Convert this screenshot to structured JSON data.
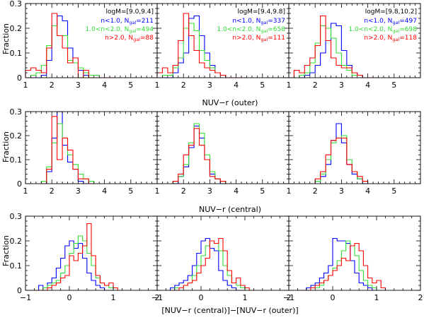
{
  "colors": {
    "blue": "#0000ff",
    "green": "#33dd33",
    "red": "#ff0000",
    "axis": "#000000"
  },
  "figure": {
    "y_axis_label": "Fraction",
    "row_xlabels": [
      "NUV−r (outer)",
      "NUV−r (central)",
      "[NUV−r (central)]−[NUV−r (outer)]"
    ]
  },
  "chart_data": [
    {
      "type": "step-histogram",
      "row": 0,
      "col": 0,
      "xlim": [
        1,
        6
      ],
      "ylim": [
        0,
        0.3
      ],
      "xticks": [
        1,
        2,
        3,
        4,
        5
      ],
      "yticks": [
        0,
        0.1,
        0.2,
        0.3
      ],
      "bin_edges": [
        1.0,
        1.2,
        1.4,
        1.6,
        1.8,
        2.0,
        2.2,
        2.4,
        2.6,
        2.8,
        3.0,
        3.2,
        3.4,
        3.6,
        3.8,
        4.0,
        4.2,
        4.4
      ],
      "legend": {
        "title": "logM=[9.0,9.4]",
        "entries": [
          {
            "name": "n<1.0, N",
            "sub": "gal",
            "eq": "=211",
            "color": "blue"
          },
          {
            "name": "1.0<n<2.0, N",
            "sub": "gal",
            "eq": "=494",
            "color": "green"
          },
          {
            "name": "n>2.0, N",
            "sub": "gal",
            "eq": "=88",
            "color": "red"
          }
        ]
      },
      "series": [
        {
          "name": "n<1.0",
          "color": "blue",
          "values": [
            0.0,
            0.0,
            0.0,
            0.01,
            0.07,
            0.21,
            0.25,
            0.23,
            0.12,
            0.06,
            0.03,
            0.01,
            0.0,
            0.0,
            0.0,
            0.0,
            0.0
          ]
        },
        {
          "name": "1.0<n<2.0",
          "color": "green",
          "values": [
            0.0,
            0.01,
            0.02,
            0.05,
            0.13,
            0.21,
            0.17,
            0.17,
            0.07,
            0.06,
            0.04,
            0.02,
            0.01,
            0.01,
            0.0,
            0.0,
            0.0
          ]
        },
        {
          "name": "n>2.0",
          "color": "red",
          "values": [
            0.03,
            0.04,
            0.03,
            0.02,
            0.12,
            0.26,
            0.17,
            0.12,
            0.06,
            0.08,
            0.0,
            0.03,
            0.0,
            0.0,
            0.0,
            0.0,
            0.0
          ]
        }
      ]
    },
    {
      "type": "step-histogram",
      "row": 0,
      "col": 1,
      "xlim": [
        1,
        6
      ],
      "ylim": [
        0,
        0.3
      ],
      "xticks": [
        1,
        2,
        3,
        4,
        5
      ],
      "yticks": [
        0,
        0.1,
        0.2,
        0.3
      ],
      "bin_edges": [
        1.0,
        1.2,
        1.4,
        1.6,
        1.8,
        2.0,
        2.2,
        2.4,
        2.6,
        2.8,
        3.0,
        3.2,
        3.4,
        3.6,
        3.8,
        4.0,
        4.2,
        4.4
      ],
      "legend": {
        "title": "logM=[9.4,9.8]",
        "entries": [
          {
            "name": "n<1.0, N",
            "sub": "gal",
            "eq": "=337",
            "color": "blue"
          },
          {
            "name": "1.0<n<2.0, N",
            "sub": "gal",
            "eq": "=658",
            "color": "green"
          },
          {
            "name": "n>2.0, N",
            "sub": "gal",
            "eq": "=111",
            "color": "red"
          }
        ]
      },
      "series": [
        {
          "name": "n<1.0",
          "color": "blue",
          "values": [
            0.0,
            0.0,
            0.0,
            0.02,
            0.06,
            0.1,
            0.24,
            0.25,
            0.17,
            0.1,
            0.05,
            0.02,
            0.01,
            0.0,
            0.0,
            0.0,
            0.0
          ]
        },
        {
          "name": "1.0<n<2.0",
          "color": "green",
          "values": [
            0.0,
            0.01,
            0.01,
            0.04,
            0.08,
            0.2,
            0.22,
            0.19,
            0.11,
            0.07,
            0.04,
            0.02,
            0.01,
            0.0,
            0.0,
            0.0,
            0.0
          ]
        },
        {
          "name": "n>2.0",
          "color": "red",
          "values": [
            0.02,
            0.04,
            0.02,
            0.05,
            0.15,
            0.26,
            0.17,
            0.11,
            0.06,
            0.04,
            0.03,
            0.02,
            0.01,
            0.0,
            0.0,
            0.0,
            0.0
          ]
        }
      ]
    },
    {
      "type": "step-histogram",
      "row": 0,
      "col": 2,
      "xlim": [
        1,
        6
      ],
      "ylim": [
        0,
        0.3
      ],
      "xticks": [
        1,
        2,
        3,
        4,
        5
      ],
      "yticks": [
        0,
        0.1,
        0.2,
        0.3
      ],
      "bin_edges": [
        1.0,
        1.2,
        1.4,
        1.6,
        1.8,
        2.0,
        2.2,
        2.4,
        2.6,
        2.8,
        3.0,
        3.2,
        3.4,
        3.6,
        3.8,
        4.0,
        4.2,
        4.4
      ],
      "legend": {
        "title": "logM=[9.8,10.2]",
        "entries": [
          {
            "name": "n<1.0, N",
            "sub": "gal",
            "eq": "=497",
            "color": "blue"
          },
          {
            "name": "1.0<n<2.0, N",
            "sub": "gal",
            "eq": "=698",
            "color": "green"
          },
          {
            "name": "n>2.0, N",
            "sub": "gal",
            "eq": "=118",
            "color": "red"
          }
        ]
      },
      "series": [
        {
          "name": "n<1.0",
          "color": "blue",
          "values": [
            0.0,
            0.0,
            0.0,
            0.01,
            0.02,
            0.05,
            0.1,
            0.15,
            0.22,
            0.21,
            0.11,
            0.05,
            0.02,
            0.01,
            0.0,
            0.0,
            0.0
          ]
        },
        {
          "name": "1.0<n<2.0",
          "color": "green",
          "values": [
            0.0,
            0.0,
            0.01,
            0.02,
            0.06,
            0.14,
            0.21,
            0.2,
            0.16,
            0.1,
            0.05,
            0.03,
            0.01,
            0.01,
            0.0,
            0.0,
            0.0
          ]
        },
        {
          "name": "n>2.0",
          "color": "red",
          "values": [
            0.0,
            0.03,
            0.02,
            0.05,
            0.08,
            0.13,
            0.25,
            0.15,
            0.08,
            0.05,
            0.04,
            0.04,
            0.02,
            0.01,
            0.0,
            0.0,
            0.0
          ]
        }
      ]
    },
    {
      "type": "step-histogram",
      "row": 1,
      "col": 0,
      "xlim": [
        1,
        6
      ],
      "ylim": [
        0,
        0.3
      ],
      "xticks": [
        1,
        2,
        3,
        4,
        5
      ],
      "yticks": [
        0,
        0.1,
        0.2,
        0.3
      ],
      "bin_edges": [
        1.6,
        1.8,
        2.0,
        2.2,
        2.4,
        2.6,
        2.8,
        3.0,
        3.2,
        3.4,
        3.6
      ],
      "series": [
        {
          "name": "n<1.0",
          "color": "blue",
          "values": [
            0.0,
            0.05,
            0.19,
            0.3,
            0.16,
            0.09,
            0.06,
            0.01,
            0.0,
            0.0
          ]
        },
        {
          "name": "1.0<n<2.0",
          "color": "green",
          "values": [
            0.01,
            0.07,
            0.17,
            0.25,
            0.19,
            0.12,
            0.08,
            0.04,
            0.02,
            0.01
          ]
        },
        {
          "name": "n>2.0",
          "color": "red",
          "values": [
            0.0,
            0.06,
            0.28,
            0.1,
            0.19,
            0.14,
            0.06,
            0.02,
            0.02,
            0.0
          ]
        }
      ]
    },
    {
      "type": "step-histogram",
      "row": 1,
      "col": 1,
      "xlim": [
        1,
        6
      ],
      "ylim": [
        0,
        0.3
      ],
      "xticks": [
        1,
        2,
        3,
        4,
        5
      ],
      "yticks": [
        0,
        0.1,
        0.2,
        0.3
      ],
      "bin_edges": [
        1.6,
        1.8,
        2.0,
        2.2,
        2.4,
        2.6,
        2.8,
        3.0,
        3.2,
        3.4,
        3.6
      ],
      "series": [
        {
          "name": "n<1.0",
          "color": "blue",
          "values": [
            0.0,
            0.03,
            0.07,
            0.15,
            0.24,
            0.19,
            0.1,
            0.04,
            0.02,
            0.0
          ]
        },
        {
          "name": "1.0<n<2.0",
          "color": "green",
          "values": [
            0.01,
            0.03,
            0.08,
            0.17,
            0.25,
            0.21,
            0.12,
            0.05,
            0.02,
            0.01
          ]
        },
        {
          "name": "n>2.0",
          "color": "red",
          "values": [
            0.01,
            0.04,
            0.12,
            0.16,
            0.23,
            0.16,
            0.1,
            0.03,
            0.02,
            0.01
          ]
        }
      ]
    },
    {
      "type": "step-histogram",
      "row": 1,
      "col": 2,
      "xlim": [
        1,
        6
      ],
      "ylim": [
        0,
        0.3
      ],
      "xticks": [
        1,
        2,
        3,
        4,
        5
      ],
      "yticks": [
        0,
        0.1,
        0.2,
        0.3
      ],
      "bin_edges": [
        2.0,
        2.2,
        2.4,
        2.6,
        2.8,
        3.0,
        3.2,
        3.4,
        3.6,
        3.8,
        4.0
      ],
      "series": [
        {
          "name": "n<1.0",
          "color": "blue",
          "values": [
            0.01,
            0.03,
            0.08,
            0.18,
            0.25,
            0.17,
            0.08,
            0.04,
            0.02,
            0.0
          ]
        },
        {
          "name": "1.0<n<2.0",
          "color": "green",
          "values": [
            0.01,
            0.04,
            0.1,
            0.17,
            0.19,
            0.2,
            0.1,
            0.05,
            0.02,
            0.01
          ]
        },
        {
          "name": "n>2.0",
          "color": "red",
          "values": [
            0.02,
            0.05,
            0.12,
            0.18,
            0.19,
            0.19,
            0.08,
            0.05,
            0.03,
            0.01
          ]
        }
      ]
    },
    {
      "type": "step-histogram",
      "row": 2,
      "col": 0,
      "xlim": [
        -1,
        2
      ],
      "ylim": [
        0,
        0.3
      ],
      "xticks": [
        -1,
        0,
        1,
        2
      ],
      "yticks": [
        0,
        0.1,
        0.2,
        0.3
      ],
      "bin_edges": [
        -0.8,
        -0.7,
        -0.6,
        -0.5,
        -0.4,
        -0.3,
        -0.2,
        -0.1,
        0.0,
        0.1,
        0.2,
        0.3,
        0.4,
        0.5,
        0.6,
        0.7,
        0.8,
        0.9,
        1.0,
        1.1,
        1.2
      ],
      "series": [
        {
          "name": "n<1.0",
          "color": "blue",
          "values": [
            0.0,
            0.02,
            0.01,
            0.03,
            0.05,
            0.09,
            0.13,
            0.18,
            0.2,
            0.17,
            0.19,
            0.13,
            0.07,
            0.04,
            0.02,
            0.01,
            0.0,
            0.0,
            0.0,
            0.0
          ]
        },
        {
          "name": "1.0<n<2.0",
          "color": "green",
          "values": [
            0.0,
            0.0,
            0.01,
            0.02,
            0.03,
            0.04,
            0.07,
            0.1,
            0.15,
            0.19,
            0.22,
            0.2,
            0.15,
            0.1,
            0.05,
            0.03,
            0.02,
            0.01,
            0.0,
            0.0
          ]
        },
        {
          "name": "n>2.0",
          "color": "red",
          "values": [
            0.0,
            0.0,
            0.0,
            0.01,
            0.02,
            0.03,
            0.05,
            0.06,
            0.14,
            0.12,
            0.15,
            0.18,
            0.27,
            0.14,
            0.06,
            0.03,
            0.02,
            0.03,
            0.01,
            0.0
          ]
        }
      ]
    },
    {
      "type": "step-histogram",
      "row": 2,
      "col": 1,
      "xlim": [
        -1,
        2
      ],
      "ylim": [
        0,
        0.3
      ],
      "xticks": [
        -1,
        0,
        1,
        2
      ],
      "yticks": [
        0,
        0.1,
        0.2,
        0.3
      ],
      "bin_edges": [
        -0.8,
        -0.7,
        -0.6,
        -0.5,
        -0.4,
        -0.3,
        -0.2,
        -0.1,
        0.0,
        0.1,
        0.2,
        0.3,
        0.4,
        0.5,
        0.6,
        0.7,
        0.8,
        0.9,
        1.0,
        1.1,
        1.2
      ],
      "series": [
        {
          "name": "n<1.0",
          "color": "blue",
          "values": [
            0.0,
            0.01,
            0.02,
            0.03,
            0.04,
            0.06,
            0.1,
            0.15,
            0.2,
            0.21,
            0.17,
            0.16,
            0.08,
            0.04,
            0.02,
            0.01,
            0.0,
            0.0,
            0.0,
            0.0
          ]
        },
        {
          "name": "1.0<n<2.0",
          "color": "green",
          "values": [
            0.0,
            0.0,
            0.01,
            0.01,
            0.02,
            0.03,
            0.06,
            0.1,
            0.14,
            0.18,
            0.2,
            0.19,
            0.16,
            0.1,
            0.06,
            0.03,
            0.02,
            0.01,
            0.0,
            0.0
          ]
        },
        {
          "name": "n>2.0",
          "color": "red",
          "values": [
            0.0,
            0.0,
            0.0,
            0.01,
            0.02,
            0.03,
            0.04,
            0.07,
            0.1,
            0.13,
            0.2,
            0.19,
            0.21,
            0.16,
            0.08,
            0.03,
            0.05,
            0.02,
            0.01,
            0.0
          ]
        }
      ]
    },
    {
      "type": "step-histogram",
      "row": 2,
      "col": 2,
      "xlim": [
        -1,
        2
      ],
      "ylim": [
        0,
        0.3
      ],
      "xticks": [
        -1,
        0,
        1,
        2
      ],
      "yticks": [
        0,
        0.1,
        0.2,
        0.3
      ],
      "bin_edges": [
        -0.8,
        -0.7,
        -0.6,
        -0.5,
        -0.4,
        -0.3,
        -0.2,
        -0.1,
        0.0,
        0.1,
        0.2,
        0.3,
        0.4,
        0.5,
        0.6,
        0.7,
        0.8,
        0.9,
        1.0,
        1.1,
        1.2
      ],
      "series": [
        {
          "name": "n<1.0",
          "color": "blue",
          "values": [
            0.0,
            0.0,
            0.01,
            0.02,
            0.03,
            0.05,
            0.07,
            0.1,
            0.21,
            0.2,
            0.2,
            0.19,
            0.12,
            0.07,
            0.03,
            0.02,
            0.01,
            0.0,
            0.0,
            0.0
          ]
        },
        {
          "name": "1.0<n<2.0",
          "color": "green",
          "values": [
            0.0,
            0.0,
            0.0,
            0.01,
            0.01,
            0.02,
            0.04,
            0.06,
            0.09,
            0.12,
            0.16,
            0.2,
            0.18,
            0.14,
            0.08,
            0.04,
            0.02,
            0.01,
            0.0,
            0.0
          ]
        },
        {
          "name": "n>2.0",
          "color": "red",
          "values": [
            0.0,
            0.0,
            0.0,
            0.01,
            0.02,
            0.03,
            0.04,
            0.06,
            0.08,
            0.1,
            0.13,
            0.12,
            0.18,
            0.19,
            0.16,
            0.1,
            0.05,
            0.03,
            0.04,
            0.01
          ]
        }
      ]
    }
  ]
}
